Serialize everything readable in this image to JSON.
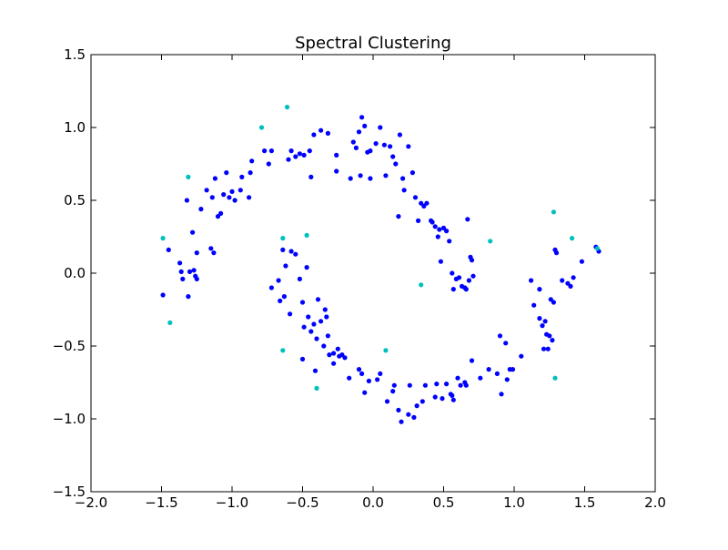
{
  "chart_data": {
    "type": "scatter",
    "title": "Spectral Clustering",
    "xlabel": "",
    "ylabel": "",
    "xlim": [
      -2.0,
      2.0
    ],
    "ylim": [
      -1.5,
      1.5
    ],
    "xticks": [
      "−2.0",
      "−1.5",
      "−1.0",
      "−0.5",
      "0.0",
      "0.5",
      "1.0",
      "1.5",
      "2.0"
    ],
    "yticks": [
      "−1.5",
      "−1.0",
      "−0.5",
      "0.0",
      "0.5",
      "1.0",
      "1.5"
    ],
    "grid": false,
    "series": [
      {
        "color": "#0000ff",
        "points": [
          [
            -1.45,
            0.16
          ],
          [
            -1.37,
            0.07
          ],
          [
            -1.36,
            0.01
          ],
          [
            -1.35,
            -0.04
          ],
          [
            -1.32,
            0.5
          ],
          [
            -1.31,
            -0.16
          ],
          [
            -1.3,
            0.01
          ],
          [
            -1.28,
            0.28
          ],
          [
            -1.27,
            0.02
          ],
          [
            -1.26,
            -0.02
          ],
          [
            -1.25,
            -0.04
          ],
          [
            -1.25,
            0.14
          ],
          [
            -1.22,
            0.44
          ],
          [
            -1.18,
            0.57
          ],
          [
            -1.15,
            0.17
          ],
          [
            -1.14,
            0.52
          ],
          [
            -1.13,
            0.14
          ],
          [
            -1.12,
            0.65
          ],
          [
            -1.1,
            0.39
          ],
          [
            -1.08,
            0.41
          ],
          [
            -1.06,
            0.54
          ],
          [
            -1.04,
            0.69
          ],
          [
            -1.02,
            0.52
          ],
          [
            -1.0,
            0.56
          ],
          [
            -0.98,
            0.5
          ],
          [
            -0.94,
            0.57
          ],
          [
            -0.93,
            0.66
          ],
          [
            -0.88,
            0.52
          ],
          [
            -0.87,
            0.69
          ],
          [
            -0.86,
            0.77
          ],
          [
            -0.77,
            0.84
          ],
          [
            -0.74,
            0.75
          ],
          [
            -0.72,
            0.84
          ],
          [
            -0.6,
            0.78
          ],
          [
            -0.58,
            0.84
          ],
          [
            -0.55,
            0.8
          ],
          [
            -0.52,
            0.82
          ],
          [
            -0.49,
            0.81
          ],
          [
            -0.45,
            0.84
          ],
          [
            -0.44,
            0.66
          ],
          [
            -0.42,
            0.95
          ],
          [
            -0.37,
            0.98
          ],
          [
            -0.32,
            0.96
          ],
          [
            -0.26,
            0.81
          ],
          [
            -0.26,
            0.7
          ],
          [
            -0.16,
            0.65
          ],
          [
            -0.14,
            0.9
          ],
          [
            -0.12,
            0.86
          ],
          [
            -0.1,
            0.97
          ],
          [
            -0.08,
            1.07
          ],
          [
            -0.06,
            1.01
          ],
          [
            -0.04,
            0.83
          ],
          [
            -0.02,
            0.84
          ],
          [
            0.02,
            0.89
          ],
          [
            0.05,
            1.0
          ],
          [
            0.08,
            0.88
          ],
          [
            0.12,
            0.87
          ],
          [
            0.14,
            0.8
          ],
          [
            0.16,
            0.75
          ],
          [
            0.19,
            0.95
          ],
          [
            0.21,
            0.65
          ],
          [
            0.22,
            0.57
          ],
          [
            0.25,
            0.87
          ],
          [
            0.28,
            0.69
          ],
          [
            0.3,
            0.52
          ],
          [
            0.34,
            0.48
          ],
          [
            0.36,
            0.46
          ],
          [
            0.38,
            0.48
          ],
          [
            0.42,
            0.35
          ],
          [
            0.44,
            0.32
          ],
          [
            0.46,
            0.25
          ],
          [
            0.47,
            0.3
          ],
          [
            0.48,
            0.08
          ],
          [
            0.5,
            0.31
          ],
          [
            0.52,
            0.29
          ],
          [
            0.54,
            0.22
          ],
          [
            0.56,
            0.0
          ],
          [
            0.57,
            -0.11
          ],
          [
            0.59,
            -0.04
          ],
          [
            0.61,
            -0.03
          ],
          [
            0.63,
            -0.09
          ],
          [
            0.65,
            -0.1
          ],
          [
            0.66,
            -0.11
          ],
          [
            0.67,
            0.37
          ],
          [
            0.68,
            -0.05
          ],
          [
            0.69,
            0.11
          ],
          [
            0.7,
            0.09
          ],
          [
            0.71,
            -0.02
          ],
          [
            0.32,
            0.36
          ],
          [
            0.18,
            0.39
          ],
          [
            -0.72,
            -0.1
          ],
          [
            -0.67,
            -0.05
          ],
          [
            -0.66,
            -0.19
          ],
          [
            -0.64,
            0.16
          ],
          [
            -0.63,
            -0.16
          ],
          [
            -0.62,
            0.05
          ],
          [
            -0.59,
            -0.28
          ],
          [
            -0.58,
            0.15
          ],
          [
            -0.55,
            0.13
          ],
          [
            -0.52,
            -0.04
          ],
          [
            -0.5,
            -0.2
          ],
          [
            -0.49,
            -0.37
          ],
          [
            -0.46,
            -0.3
          ],
          [
            -0.47,
            0.04
          ],
          [
            -0.44,
            -0.4
          ],
          [
            -0.42,
            -0.35
          ],
          [
            -0.4,
            -0.45
          ],
          [
            -0.39,
            -0.18
          ],
          [
            -0.37,
            -0.33
          ],
          [
            -0.35,
            -0.5
          ],
          [
            -0.34,
            -0.25
          ],
          [
            -0.33,
            -0.3
          ],
          [
            -0.32,
            -0.43
          ],
          [
            -0.31,
            -0.56
          ],
          [
            -0.28,
            -0.55
          ],
          [
            -0.25,
            -0.52
          ],
          [
            -0.24,
            -0.57
          ],
          [
            -0.22,
            -0.56
          ],
          [
            -0.2,
            -0.58
          ],
          [
            -0.17,
            -0.72
          ],
          [
            -0.1,
            -0.66
          ],
          [
            -0.08,
            -0.69
          ],
          [
            -0.06,
            -0.82
          ],
          [
            -0.03,
            -0.74
          ],
          [
            0.05,
            -0.69
          ],
          [
            0.1,
            -0.88
          ],
          [
            0.14,
            -0.81
          ],
          [
            0.15,
            -0.77
          ],
          [
            0.2,
            -1.02
          ],
          [
            0.25,
            -0.97
          ],
          [
            0.26,
            -0.77
          ],
          [
            0.29,
            -0.99
          ],
          [
            0.31,
            -0.91
          ],
          [
            0.35,
            -0.88
          ],
          [
            0.37,
            -0.77
          ],
          [
            0.45,
            -0.76
          ],
          [
            0.49,
            -0.86
          ],
          [
            0.52,
            -0.76
          ],
          [
            0.55,
            -0.83
          ],
          [
            0.56,
            -0.84
          ],
          [
            0.57,
            -0.87
          ],
          [
            0.62,
            -0.77
          ],
          [
            0.65,
            -0.75
          ],
          [
            0.66,
            -0.77
          ],
          [
            0.7,
            -0.6
          ],
          [
            0.76,
            -0.72
          ],
          [
            0.82,
            -0.66
          ],
          [
            0.88,
            -0.69
          ],
          [
            0.9,
            -0.43
          ],
          [
            0.91,
            -0.83
          ],
          [
            0.94,
            -0.48
          ],
          [
            0.95,
            -0.73
          ],
          [
            0.97,
            -0.66
          ],
          [
            0.99,
            -0.66
          ],
          [
            1.05,
            -0.57
          ],
          [
            1.12,
            -0.05
          ],
          [
            1.14,
            -0.22
          ],
          [
            1.18,
            -0.11
          ],
          [
            1.2,
            -0.36
          ],
          [
            1.21,
            -0.52
          ],
          [
            1.22,
            -0.33
          ],
          [
            1.23,
            -0.42
          ],
          [
            1.24,
            -0.52
          ],
          [
            1.25,
            -0.43
          ],
          [
            1.26,
            -0.18
          ],
          [
            1.27,
            -0.46
          ],
          [
            1.29,
            0.16
          ],
          [
            1.3,
            0.14
          ],
          [
            1.34,
            -0.05
          ],
          [
            1.38,
            -0.07
          ],
          [
            1.4,
            -0.09
          ],
          [
            1.42,
            -0.03
          ],
          [
            1.48,
            0.08
          ],
          [
            1.58,
            0.18
          ],
          [
            1.6,
            0.15
          ],
          [
            -0.09,
            0.67
          ],
          [
            -0.02,
            0.65
          ],
          [
            0.09,
            0.67
          ],
          [
            0.41,
            0.36
          ],
          [
            -1.49,
            -0.15
          ],
          [
            -0.5,
            -0.59
          ],
          [
            -0.41,
            -0.67
          ],
          [
            -0.28,
            -0.62
          ],
          [
            0.03,
            -0.73
          ],
          [
            0.18,
            -0.94
          ],
          [
            0.44,
            -0.85
          ],
          [
            0.6,
            -0.72
          ],
          [
            1.18,
            -0.31
          ],
          [
            1.28,
            -0.2
          ]
        ]
      },
      {
        "color": "#00bfbf",
        "points": [
          [
            -1.49,
            0.24
          ],
          [
            -1.44,
            -0.34
          ],
          [
            -1.31,
            0.66
          ],
          [
            -0.79,
            1.0
          ],
          [
            -0.61,
            1.14
          ],
          [
            -0.64,
            0.24
          ],
          [
            -0.47,
            0.26
          ],
          [
            -0.64,
            -0.53
          ],
          [
            -0.4,
            -0.79
          ],
          [
            0.09,
            -0.53
          ],
          [
            0.34,
            -0.08
          ],
          [
            0.83,
            0.22
          ],
          [
            1.28,
            0.42
          ],
          [
            1.29,
            -0.72
          ],
          [
            1.41,
            0.24
          ],
          [
            1.59,
            0.17
          ]
        ]
      }
    ]
  }
}
